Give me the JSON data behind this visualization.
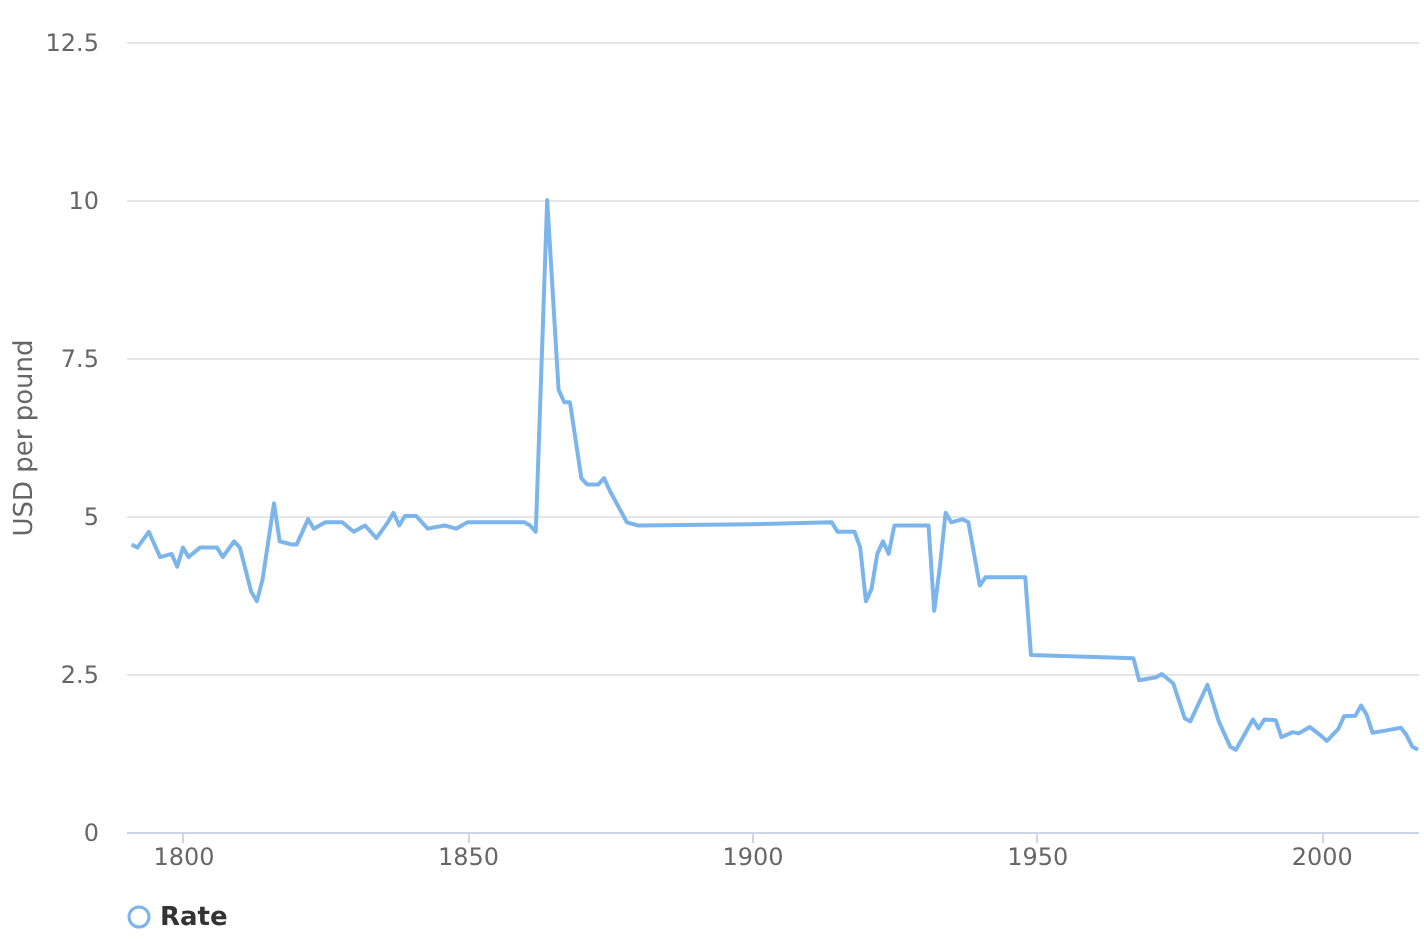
{
  "chart_data": {
    "type": "line",
    "ylabel": "USD per pound",
    "x": [
      1791,
      1792,
      1794,
      1796,
      1798,
      1799,
      1800,
      1801,
      1803,
      1806,
      1807,
      1809,
      1810,
      1812,
      1813,
      1814,
      1816,
      1817,
      1819,
      1820,
      1822,
      1823,
      1825,
      1828,
      1830,
      1832,
      1834,
      1836,
      1837,
      1838,
      1839,
      1841,
      1843,
      1846,
      1848,
      1850,
      1855,
      1860,
      1861,
      1862,
      1864,
      1866,
      1867,
      1868,
      1870,
      1871,
      1873,
      1874,
      1875,
      1878,
      1880,
      1900,
      1914,
      1915,
      1918,
      1919,
      1920,
      1921,
      1922,
      1923,
      1924,
      1925,
      1931,
      1932,
      1933,
      1934,
      1935,
      1937,
      1938,
      1940,
      1941,
      1948,
      1949,
      1967,
      1968,
      1971,
      1972,
      1974,
      1976,
      1977,
      1980,
      1982,
      1984,
      1985,
      1988,
      1989,
      1990,
      1992,
      1993,
      1995,
      1996,
      1998,
      2000,
      2001,
      2003,
      2004,
      2006,
      2007,
      2008,
      2009,
      2011,
      2014,
      2015,
      2016,
      2017
    ],
    "series": [
      {
        "name": "Rate",
        "color": "#7cb5ec",
        "values": [
          4.55,
          4.5,
          4.75,
          4.35,
          4.4,
          4.2,
          4.5,
          4.35,
          4.5,
          4.5,
          4.35,
          4.6,
          4.5,
          3.8,
          3.65,
          4.0,
          5.2,
          4.6,
          4.55,
          4.55,
          4.95,
          4.8,
          4.9,
          4.9,
          4.75,
          4.85,
          4.65,
          4.9,
          5.05,
          4.85,
          5.0,
          5.0,
          4.8,
          4.85,
          4.8,
          4.9,
          4.9,
          4.9,
          4.85,
          4.75,
          10.0,
          7.0,
          6.8,
          6.8,
          5.6,
          5.5,
          5.5,
          5.6,
          5.4,
          4.9,
          4.85,
          4.87,
          4.9,
          4.75,
          4.75,
          4.5,
          3.65,
          3.85,
          4.4,
          4.6,
          4.4,
          4.85,
          4.85,
          3.5,
          4.2,
          5.05,
          4.9,
          4.95,
          4.9,
          3.9,
          4.03,
          4.03,
          2.8,
          2.75,
          2.4,
          2.45,
          2.5,
          2.35,
          1.8,
          1.75,
          2.33,
          1.75,
          1.35,
          1.3,
          1.78,
          1.64,
          1.78,
          1.77,
          1.5,
          1.58,
          1.56,
          1.66,
          1.52,
          1.44,
          1.63,
          1.83,
          1.84,
          2.0,
          1.85,
          1.57,
          1.6,
          1.65,
          1.53,
          1.35,
          1.3
        ]
      }
    ],
    "xlim": [
      1790,
      2017
    ],
    "xticks": [
      1800,
      1850,
      1900,
      1950,
      2000
    ],
    "ylim": [
      0,
      12.5
    ],
    "yticks": [
      0,
      2.5,
      5,
      7.5,
      10,
      12.5
    ],
    "grid": "y",
    "legend": "bottom",
    "marker": "none",
    "line_style": "solid"
  }
}
